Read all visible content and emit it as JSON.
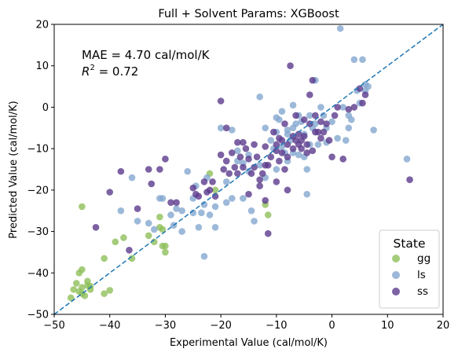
{
  "chart_data": {
    "type": "scatter",
    "title": "Full + Solvent Params: XGBoost",
    "xlabel": "Experimental Value (cal/mol/K)",
    "ylabel": "Predicted Value (cal/mol/K)",
    "xlim": [
      -50,
      20
    ],
    "ylim": [
      -50,
      20
    ],
    "xticks": [
      "−50",
      "−40",
      "−30",
      "−20",
      "−10",
      "0",
      "10",
      "20"
    ],
    "yticks": [
      "−50",
      "−40",
      "−30",
      "−20",
      "−10",
      "0",
      "10",
      "20"
    ],
    "grid": false,
    "legend_position": "bottom-right",
    "legend_title": "State",
    "annotations": {
      "mae": "MAE = 4.70 cal/mol/K",
      "r2_prefix": "R",
      "r2_exp": "2",
      "r2_value": " = 0.72"
    },
    "reference_line": {
      "x": [
        -50,
        20
      ],
      "y": [
        -50,
        20
      ],
      "style": "dashed",
      "color": "#1f77b4"
    },
    "series": [
      {
        "name": "gg",
        "color": "#8fbf5a",
        "points": [
          [
            -47,
            -46
          ],
          [
            -46.5,
            -44
          ],
          [
            -46,
            -42.5
          ],
          [
            -45.5,
            -44.5
          ],
          [
            -45.5,
            -40
          ],
          [
            -45,
            -39.2
          ],
          [
            -45,
            -43.5
          ],
          [
            -45,
            -45
          ],
          [
            -44.5,
            -45.5
          ],
          [
            -44,
            -42
          ],
          [
            -44,
            -43
          ],
          [
            -43.5,
            -44
          ],
          [
            -43.5,
            -43.2
          ],
          [
            -41,
            -36.5
          ],
          [
            -41,
            -45
          ],
          [
            -40,
            -44.2
          ],
          [
            -39,
            -32.5
          ],
          [
            -37.5,
            -31.5
          ],
          [
            -36,
            -36.5
          ],
          [
            -33,
            -31
          ],
          [
            -32,
            -32.5
          ],
          [
            -31,
            -26.5
          ],
          [
            -31,
            -29
          ],
          [
            -30.5,
            -29.5
          ],
          [
            -30.5,
            -33.5
          ],
          [
            -30,
            -35
          ],
          [
            -30,
            -33.5
          ],
          [
            -45,
            -24
          ],
          [
            -22,
            -16
          ],
          [
            -11.5,
            -26
          ],
          [
            -12,
            -23.5
          ],
          [
            -21,
            -20
          ]
        ]
      },
      {
        "name": "ls",
        "color": "#84a8cf",
        "points": [
          [
            -38,
            -25
          ],
          [
            -36,
            -17
          ],
          [
            -35,
            -27.5
          ],
          [
            -33,
            -28
          ],
          [
            -32,
            -29.5
          ],
          [
            -31,
            -22
          ],
          [
            -30.5,
            -22
          ],
          [
            -29,
            -26
          ],
          [
            -28.5,
            -28.5
          ],
          [
            -28,
            -24.5
          ],
          [
            -27,
            -25
          ],
          [
            -27,
            -30
          ],
          [
            -26,
            -15.5
          ],
          [
            -25,
            -22
          ],
          [
            -25,
            -25.5
          ],
          [
            -24.5,
            -19
          ],
          [
            -24,
            -29
          ],
          [
            -23.5,
            -25.5
          ],
          [
            -23,
            -36
          ],
          [
            -23,
            -23.5
          ],
          [
            -22.5,
            -17
          ],
          [
            -22,
            -26
          ],
          [
            -21,
            -24
          ],
          [
            -21,
            -29
          ],
          [
            -20,
            -5
          ],
          [
            -19,
            -23
          ],
          [
            -19,
            -18
          ],
          [
            -18,
            -5.5
          ],
          [
            -18,
            -22
          ],
          [
            -17,
            -13
          ],
          [
            -17,
            -10.5
          ],
          [
            -16,
            -13.5
          ],
          [
            -16,
            -22
          ],
          [
            -15,
            -15.5
          ],
          [
            -15,
            -11.5
          ],
          [
            -14.5,
            -25
          ],
          [
            -14,
            -27.5
          ],
          [
            -13,
            2.5
          ],
          [
            -13,
            -14
          ],
          [
            -12,
            -17
          ],
          [
            -12,
            -5
          ],
          [
            -11,
            -8
          ],
          [
            -10.5,
            -10
          ],
          [
            -10,
            -15
          ],
          [
            -10,
            -6
          ],
          [
            -9.5,
            -3
          ],
          [
            -9,
            -1
          ],
          [
            -9,
            -9.5
          ],
          [
            -8.5,
            -11
          ],
          [
            -8,
            -5.5
          ],
          [
            -8,
            -13
          ],
          [
            -7.5,
            -8
          ],
          [
            -7,
            -5
          ],
          [
            -7,
            -11
          ],
          [
            -6.5,
            -4
          ],
          [
            -6,
            -2
          ],
          [
            -6,
            -11.5
          ],
          [
            -5.5,
            -3.5
          ],
          [
            -5,
            -6.5
          ],
          [
            -5,
            -12
          ],
          [
            -4.5,
            -15
          ],
          [
            -4.5,
            -21
          ],
          [
            -4,
            -2
          ],
          [
            -4,
            -9
          ],
          [
            -3.5,
            -5
          ],
          [
            -3,
            6.5
          ],
          [
            -3,
            -4
          ],
          [
            -2.5,
            -9
          ],
          [
            -2,
            0
          ],
          [
            -1.5,
            -2
          ],
          [
            -1,
            -5
          ],
          [
            -1,
            -8.5
          ],
          [
            0,
            -3.5
          ],
          [
            1,
            -7.5
          ],
          [
            1.5,
            19
          ],
          [
            2,
            0
          ],
          [
            2.5,
            -8
          ],
          [
            3,
            -5
          ],
          [
            3,
            -2
          ],
          [
            3.5,
            -3
          ],
          [
            4,
            11.5
          ],
          [
            4.5,
            4
          ],
          [
            5,
            1
          ],
          [
            5.5,
            11.5
          ],
          [
            6,
            5.5
          ],
          [
            6,
            4
          ],
          [
            6.5,
            5
          ],
          [
            7.5,
            -5.5
          ],
          [
            -8,
            -6.5
          ],
          [
            -10,
            -2.5
          ],
          [
            -7,
            0.5
          ],
          [
            13.5,
            -12.5
          ]
        ]
      },
      {
        "name": "ss",
        "color": "#5b3a8c",
        "points": [
          [
            -42.5,
            -29
          ],
          [
            -40,
            -20.5
          ],
          [
            -38,
            -15.5
          ],
          [
            -36.5,
            -34.5
          ],
          [
            -35,
            -24.5
          ],
          [
            -33,
            -15
          ],
          [
            -32.5,
            -18.5
          ],
          [
            -31,
            -15
          ],
          [
            -30,
            -12.5
          ],
          [
            -29,
            -23
          ],
          [
            -28,
            -23
          ],
          [
            -25,
            -19.5
          ],
          [
            -24.5,
            -21
          ],
          [
            -24,
            -21.5
          ],
          [
            -23,
            -18
          ],
          [
            -22.5,
            -20.5
          ],
          [
            -22,
            -20
          ],
          [
            -21.5,
            -18
          ],
          [
            -21,
            -21.5
          ],
          [
            -20,
            -11.5
          ],
          [
            -20,
            1.5
          ],
          [
            -19.5,
            -15
          ],
          [
            -19,
            -13
          ],
          [
            -18.5,
            -16
          ],
          [
            -18,
            -11
          ],
          [
            -17.5,
            -14.5
          ],
          [
            -17,
            -16
          ],
          [
            -17,
            -8.5
          ],
          [
            -16.5,
            -12
          ],
          [
            -16,
            -14.5
          ],
          [
            -15.5,
            -10
          ],
          [
            -15,
            -12.5
          ],
          [
            -15,
            -21
          ],
          [
            -14.5,
            -16
          ],
          [
            -14,
            -9
          ],
          [
            -14,
            -14.5
          ],
          [
            -13.5,
            -12
          ],
          [
            -13,
            -17.5
          ],
          [
            -13,
            -19
          ],
          [
            -12.5,
            -16
          ],
          [
            -12,
            -22.5
          ],
          [
            -12,
            -9.5
          ],
          [
            -11.5,
            -14
          ],
          [
            -11.5,
            -30.5
          ],
          [
            -11,
            -12
          ],
          [
            -10.5,
            -6
          ],
          [
            -10,
            -10.5
          ],
          [
            -10,
            -9
          ],
          [
            -9.5,
            -7.5
          ],
          [
            -9.5,
            -13
          ],
          [
            -9,
            -8
          ],
          [
            -9,
            -11
          ],
          [
            -8.5,
            -15
          ],
          [
            -8.5,
            -4
          ],
          [
            -8,
            -12
          ],
          [
            -8,
            -9
          ],
          [
            -7.5,
            10
          ],
          [
            -7,
            -10
          ],
          [
            -7,
            -7
          ],
          [
            -6.5,
            -8
          ],
          [
            -6.5,
            -2
          ],
          [
            -6,
            -9
          ],
          [
            -6,
            -6.5
          ],
          [
            -5.5,
            -10
          ],
          [
            -5.5,
            -8
          ],
          [
            -5,
            -3
          ],
          [
            -5,
            -7
          ],
          [
            -4.5,
            -11
          ],
          [
            -4.5,
            -9
          ],
          [
            -4,
            -4
          ],
          [
            -4,
            3
          ],
          [
            -3.5,
            6.5
          ],
          [
            -3.5,
            -10.5
          ],
          [
            -3,
            -6
          ],
          [
            -3,
            -2
          ],
          [
            -2.5,
            -6
          ],
          [
            -2,
            -7.5
          ],
          [
            -2,
            -3.5
          ],
          [
            -1.5,
            -6
          ],
          [
            -1,
            -4
          ],
          [
            -0.5,
            -8
          ],
          [
            0,
            -12
          ],
          [
            0.5,
            -2
          ],
          [
            1,
            0
          ],
          [
            2,
            -12.5
          ],
          [
            3,
            -0.5
          ],
          [
            4,
            0
          ],
          [
            5,
            4.5
          ],
          [
            5.5,
            1
          ],
          [
            6,
            3
          ],
          [
            14,
            -17.5
          ],
          [
            -19,
            -5
          ],
          [
            -16,
            -8.5
          ],
          [
            -12,
            -14
          ],
          [
            -10,
            -18
          ],
          [
            -8,
            -20
          ]
        ]
      }
    ]
  }
}
